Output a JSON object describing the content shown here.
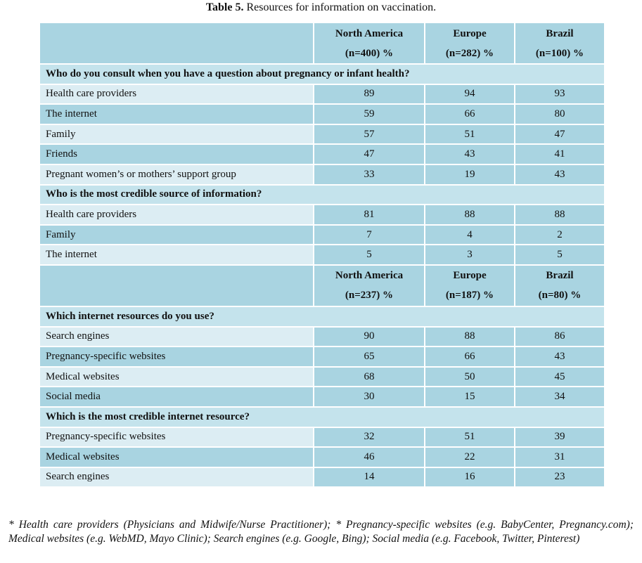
{
  "caption": {
    "label": "Table 5.",
    "text": "Resources for information on vaccination."
  },
  "table": {
    "groups": [
      {
        "columns": [
          {
            "name": "North America",
            "n": "(n=400) %"
          },
          {
            "name": "Europe",
            "n": "(n=282) %"
          },
          {
            "name": "Brazil",
            "n": "(n=100) %"
          }
        ],
        "sections": [
          {
            "question": "Who do you consult when you have a question about pregnancy or infant health?",
            "rows": [
              {
                "label": "Health care providers",
                "values": [
                  89,
                  94,
                  93
                ]
              },
              {
                "label": "The internet",
                "values": [
                  59,
                  66,
                  80
                ]
              },
              {
                "label": "Family",
                "values": [
                  57,
                  51,
                  47
                ]
              },
              {
                "label": "Friends",
                "values": [
                  47,
                  43,
                  41
                ]
              },
              {
                "label": "Pregnant women’s or mothers’ support group",
                "values": [
                  33,
                  19,
                  43
                ]
              }
            ]
          },
          {
            "question": "Who is the most credible source of information?",
            "rows": [
              {
                "label": "Health care providers",
                "values": [
                  81,
                  88,
                  88
                ]
              },
              {
                "label": "Family",
                "values": [
                  7,
                  4,
                  2
                ]
              },
              {
                "label": "The internet",
                "values": [
                  5,
                  3,
                  5
                ]
              }
            ]
          }
        ]
      },
      {
        "columns": [
          {
            "name": "North America",
            "n": "(n=237) %"
          },
          {
            "name": "Europe",
            "n": "(n=187) %"
          },
          {
            "name": "Brazil",
            "n": "(n=80) %"
          }
        ],
        "sections": [
          {
            "question": "Which internet resources do you use?",
            "rows": [
              {
                "label": "Search engines",
                "values": [
                  90,
                  88,
                  86
                ]
              },
              {
                "label": "Pregnancy-specific websites",
                "values": [
                  65,
                  66,
                  43
                ]
              },
              {
                "label": "Medical websites",
                "values": [
                  68,
                  50,
                  45
                ]
              },
              {
                "label": "Social media",
                "values": [
                  30,
                  15,
                  34
                ]
              }
            ]
          },
          {
            "question": "Which is the most credible internet resource?",
            "rows": [
              {
                "label": "Pregnancy-specific websites",
                "values": [
                  32,
                  51,
                  39
                ]
              },
              {
                "label": "Medical websites",
                "values": [
                  46,
                  22,
                  31
                ]
              },
              {
                "label": "Search engines",
                "values": [
                  14,
                  16,
                  23
                ]
              }
            ]
          }
        ]
      }
    ]
  },
  "footnote": "* Health care providers (Physicians and Midwife/Nurse Practitioner); * Pregnancy-specific websites (e.g. BabyCenter, Pregnancy.com); Medical websites (e.g. WebMD, Mayo Clinic); Search engines (e.g. Google, Bing); Social media (e.g. Facebook, Twitter, Pinterest)"
}
